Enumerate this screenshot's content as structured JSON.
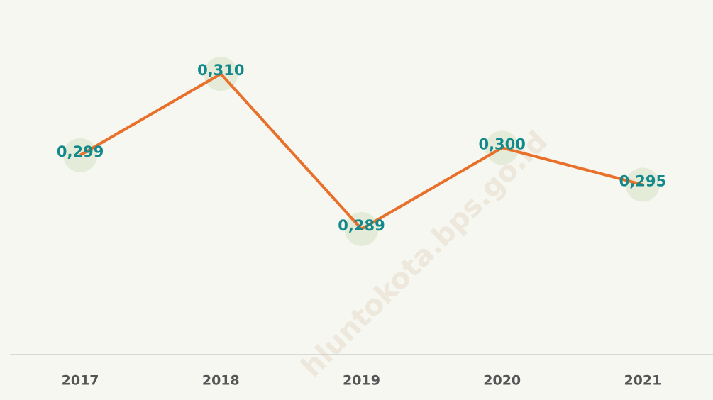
{
  "chart_data": {
    "type": "line",
    "categories": [
      "2017",
      "2018",
      "2019",
      "2020",
      "2021"
    ],
    "values": [
      0.299,
      0.31,
      0.289,
      0.3,
      0.295
    ],
    "value_labels": [
      "0,299",
      "0,310",
      "0,289",
      "0,300",
      "0,295"
    ],
    "color": "#e8702a",
    "ylim": [
      0.272,
      0.32
    ],
    "grid": false,
    "watermark": "hluntokota.bps.go.id"
  }
}
